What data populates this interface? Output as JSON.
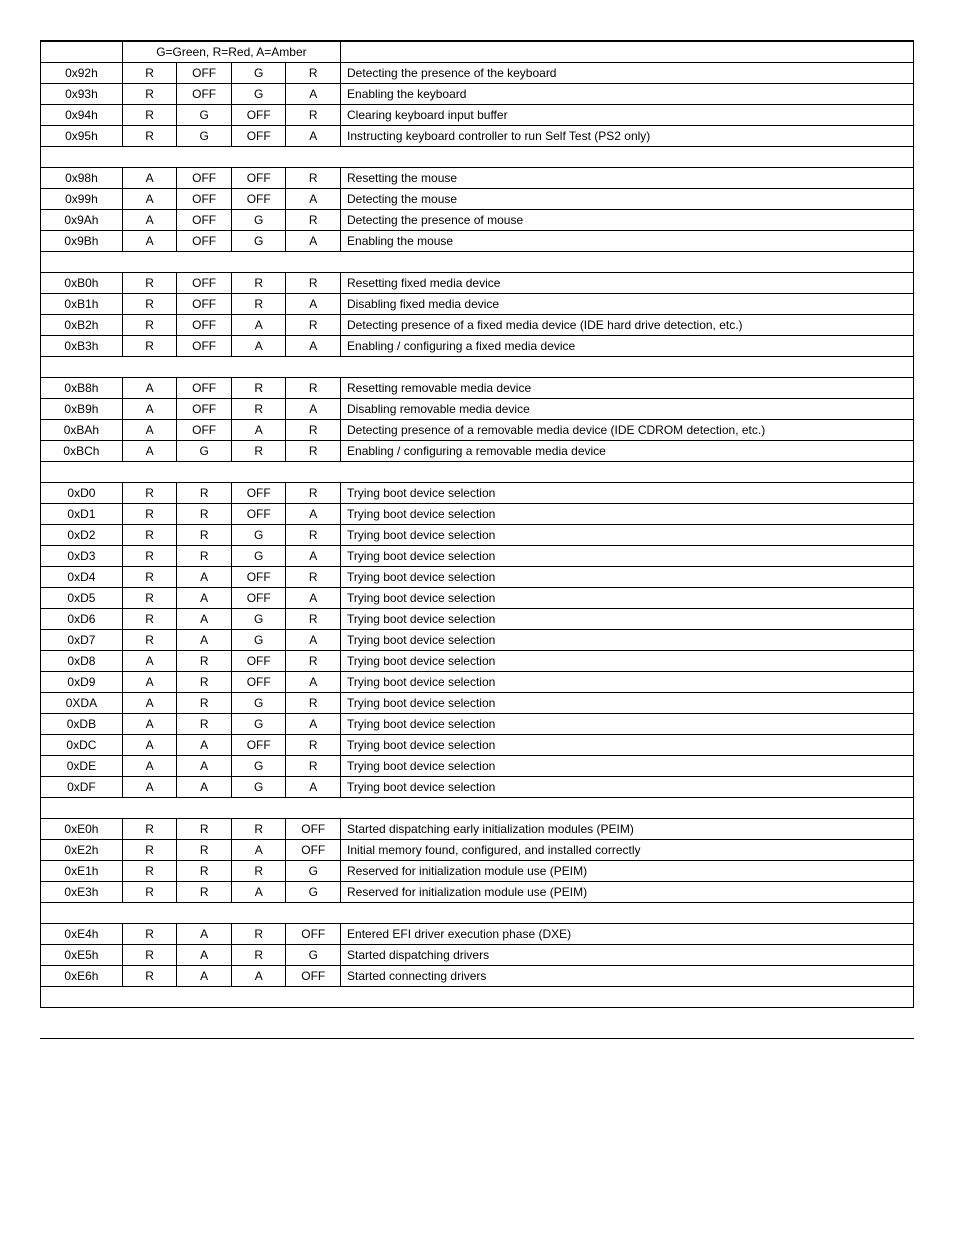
{
  "table": {
    "legend": "G=Green, R=Red, A=Amber",
    "columns": [
      "code",
      "led1",
      "led2",
      "led3",
      "led4",
      "desc"
    ],
    "background_color": "#ffffff",
    "border_color": "#000000",
    "font_size": 12,
    "rows": [
      {
        "code": "0x92h",
        "l1": "R",
        "l2": "OFF",
        "l3": "G",
        "l4": "R",
        "desc": "Detecting the presence of the keyboard"
      },
      {
        "code": "0x93h",
        "l1": "R",
        "l2": "OFF",
        "l3": "G",
        "l4": "A",
        "desc": "Enabling the keyboard"
      },
      {
        "code": "0x94h",
        "l1": "R",
        "l2": "G",
        "l3": "OFF",
        "l4": "R",
        "desc": "Clearing keyboard input buffer"
      },
      {
        "code": "0x95h",
        "l1": "R",
        "l2": "G",
        "l3": "OFF",
        "l4": "A",
        "desc": "Instructing keyboard controller to run Self Test (PS2 only)"
      },
      {
        "section": true
      },
      {
        "code": "0x98h",
        "l1": "A",
        "l2": "OFF",
        "l3": "OFF",
        "l4": "R",
        "desc": "Resetting the mouse"
      },
      {
        "code": "0x99h",
        "l1": "A",
        "l2": "OFF",
        "l3": "OFF",
        "l4": "A",
        "desc": "Detecting the mouse"
      },
      {
        "code": "0x9Ah",
        "l1": "A",
        "l2": "OFF",
        "l3": "G",
        "l4": "R",
        "desc": "Detecting the presence of mouse"
      },
      {
        "code": "0x9Bh",
        "l1": "A",
        "l2": "OFF",
        "l3": "G",
        "l4": "A",
        "desc": "Enabling the mouse"
      },
      {
        "section": true
      },
      {
        "code": "0xB0h",
        "l1": "R",
        "l2": "OFF",
        "l3": "R",
        "l4": "R",
        "desc": "Resetting fixed media device"
      },
      {
        "code": "0xB1h",
        "l1": "R",
        "l2": "OFF",
        "l3": "R",
        "l4": "A",
        "desc": "Disabling fixed media device"
      },
      {
        "code": "0xB2h",
        "l1": "R",
        "l2": "OFF",
        "l3": "A",
        "l4": "R",
        "desc": "Detecting presence of a fixed media device (IDE hard drive detection, etc.)"
      },
      {
        "code": "0xB3h",
        "l1": "R",
        "l2": "OFF",
        "l3": "A",
        "l4": "A",
        "desc": "Enabling / configuring a fixed media device"
      },
      {
        "section": true
      },
      {
        "code": "0xB8h",
        "l1": "A",
        "l2": "OFF",
        "l3": "R",
        "l4": "R",
        "desc": "Resetting removable media device"
      },
      {
        "code": "0xB9h",
        "l1": "A",
        "l2": "OFF",
        "l3": "R",
        "l4": "A",
        "desc": "Disabling removable media device"
      },
      {
        "code": "0xBAh",
        "l1": "A",
        "l2": "OFF",
        "l3": "A",
        "l4": "R",
        "desc": "Detecting presence of a removable media device (IDE CDROM detection, etc.)"
      },
      {
        "code": "0xBCh",
        "l1": "A",
        "l2": "G",
        "l3": "R",
        "l4": "R",
        "desc": "Enabling / configuring a removable media device"
      },
      {
        "section": true
      },
      {
        "code": "0xD0",
        "l1": "R",
        "l2": "R",
        "l3": "OFF",
        "l4": "R",
        "desc": "Trying boot device selection"
      },
      {
        "code": "0xD1",
        "l1": "R",
        "l2": "R",
        "l3": "OFF",
        "l4": "A",
        "desc": "Trying boot device selection"
      },
      {
        "code": "0xD2",
        "l1": "R",
        "l2": "R",
        "l3": "G",
        "l4": "R",
        "desc": "Trying boot device selection"
      },
      {
        "code": "0xD3",
        "l1": "R",
        "l2": "R",
        "l3": "G",
        "l4": "A",
        "desc": "Trying boot device selection"
      },
      {
        "code": "0xD4",
        "l1": "R",
        "l2": "A",
        "l3": "OFF",
        "l4": "R",
        "desc": "Trying boot device selection"
      },
      {
        "code": "0xD5",
        "l1": "R",
        "l2": "A",
        "l3": "OFF",
        "l4": "A",
        "desc": "Trying boot device selection"
      },
      {
        "code": "0xD6",
        "l1": "R",
        "l2": "A",
        "l3": "G",
        "l4": "R",
        "desc": "Trying boot device selection"
      },
      {
        "code": "0xD7",
        "l1": "R",
        "l2": "A",
        "l3": "G",
        "l4": "A",
        "desc": "Trying boot device selection"
      },
      {
        "code": "0xD8",
        "l1": "A",
        "l2": "R",
        "l3": "OFF",
        "l4": "R",
        "desc": "Trying boot device selection"
      },
      {
        "code": "0xD9",
        "l1": "A",
        "l2": "R",
        "l3": "OFF",
        "l4": "A",
        "desc": "Trying boot device selection"
      },
      {
        "code": "0XDA",
        "l1": "A",
        "l2": "R",
        "l3": "G",
        "l4": "R",
        "desc": "Trying boot device selection"
      },
      {
        "code": "0xDB",
        "l1": "A",
        "l2": "R",
        "l3": "G",
        "l4": "A",
        "desc": "Trying boot device selection"
      },
      {
        "code": "0xDC",
        "l1": "A",
        "l2": "A",
        "l3": "OFF",
        "l4": "R",
        "desc": "Trying boot device selection"
      },
      {
        "code": "0xDE",
        "l1": "A",
        "l2": "A",
        "l3": "G",
        "l4": "R",
        "desc": "Trying boot device selection"
      },
      {
        "code": "0xDF",
        "l1": "A",
        "l2": "A",
        "l3": "G",
        "l4": "A",
        "desc": "Trying boot device selection"
      },
      {
        "section": true
      },
      {
        "code": "0xE0h",
        "l1": "R",
        "l2": "R",
        "l3": "R",
        "l4": "OFF",
        "desc": "Started dispatching early initialization modules (PEIM)"
      },
      {
        "code": "0xE2h",
        "l1": "R",
        "l2": "R",
        "l3": "A",
        "l4": "OFF",
        "desc": "Initial memory found, configured, and installed correctly"
      },
      {
        "code": "0xE1h",
        "l1": "R",
        "l2": "R",
        "l3": "R",
        "l4": "G",
        "desc": "Reserved for initialization module use (PEIM)"
      },
      {
        "code": "0xE3h",
        "l1": "R",
        "l2": "R",
        "l3": "A",
        "l4": "G",
        "desc": "Reserved for initialization module use (PEIM)"
      },
      {
        "section": true
      },
      {
        "code": "0xE4h",
        "l1": "R",
        "l2": "A",
        "l3": "R",
        "l4": "OFF",
        "desc": "Entered EFI driver execution phase (DXE)"
      },
      {
        "code": "0xE5h",
        "l1": "R",
        "l2": "A",
        "l3": "R",
        "l4": "G",
        "desc": "Started dispatching drivers"
      },
      {
        "code": "0xE6h",
        "l1": "R",
        "l2": "A",
        "l3": "A",
        "l4": "OFF",
        "desc": "Started connecting drivers"
      },
      {
        "section": true
      }
    ]
  }
}
